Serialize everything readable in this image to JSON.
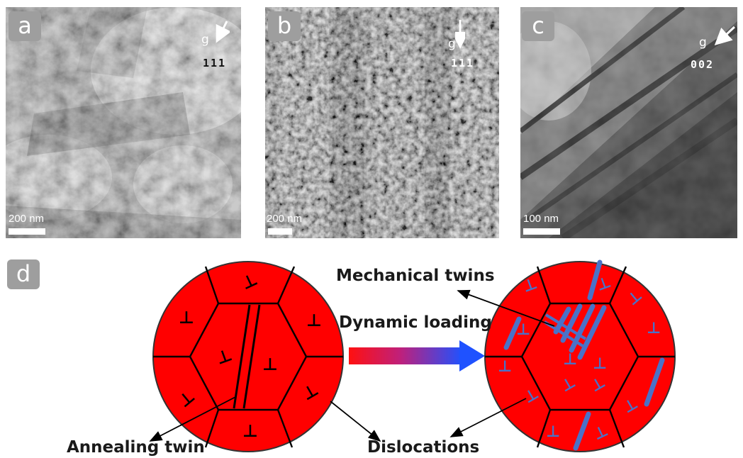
{
  "panels": {
    "a": {
      "label": "a",
      "g": "g",
      "index": "111",
      "scalebar": "200 nm"
    },
    "b": {
      "label": "b",
      "g": "g",
      "index": "111",
      "scalebar": "200 nm"
    },
    "c": {
      "label": "c",
      "g": "g",
      "index": "002",
      "scalebar": "100 nm"
    },
    "d": {
      "label": "d"
    }
  },
  "schematic": {
    "mechanical_twins": "Mechanical twins",
    "dynamic_loading": "Dynamic loading",
    "annealing_twin": "Annealing twin",
    "dislocations": "Dislocations"
  },
  "colors": {
    "grain_fill": "#ff0000",
    "twin_blue": "#4a72c8",
    "arrow_start": "#ff0000",
    "arrow_end": "#1f52ff"
  }
}
